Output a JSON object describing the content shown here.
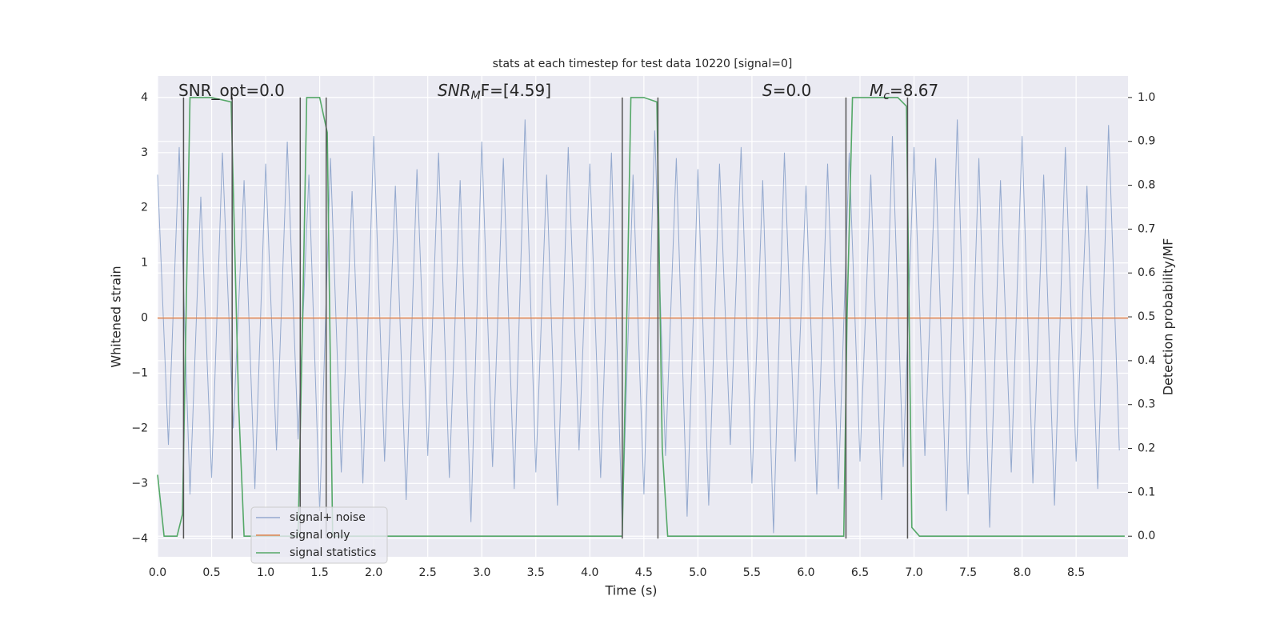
{
  "chart_data": {
    "type": "line",
    "title": "stats at each timestep for test data 10220 [signal=0]",
    "xlabel": "Time (s)",
    "ylabel": "Whitened strain",
    "y2label": "Detection probability/MF",
    "xlim": [
      0,
      8.98
    ],
    "ylim": [
      -4.33,
      4.39
    ],
    "y2lim": [
      -0.047,
      1.049
    ],
    "xticks": [
      {
        "value": 0,
        "label": "0.0"
      },
      0.5,
      {
        "value": 1,
        "label": "1.0"
      },
      1.5,
      {
        "value": 2,
        "label": "2.0"
      },
      2.5,
      {
        "value": 3,
        "label": "3.0"
      },
      3.5,
      {
        "value": 4,
        "label": "4.0"
      },
      4.5,
      {
        "value": 5,
        "label": "5.0"
      },
      5.5,
      {
        "value": 6,
        "label": "6.0"
      },
      6.5,
      {
        "value": 7,
        "label": "7.0"
      },
      7.5,
      {
        "value": 8,
        "label": "8.0"
      },
      8.5
    ],
    "yticks": [
      {
        "value": -4,
        "label": "−4"
      },
      {
        "value": -3,
        "label": "−3"
      },
      {
        "value": -2,
        "label": "−2"
      },
      {
        "value": -1,
        "label": "−1"
      },
      0,
      1,
      2,
      3,
      4
    ],
    "y2ticks": [
      {
        "value": 0,
        "label": "0.0"
      },
      0.1,
      0.2,
      0.3,
      0.4,
      0.5,
      0.6,
      0.7,
      0.8,
      0.9,
      {
        "value": 1,
        "label": "1.0"
      }
    ],
    "grid": true,
    "legend_loc": "lower left",
    "series": [
      {
        "name": "signal+ noise",
        "color": "#4c72b0",
        "x": [
          0,
          0.1,
          0.2,
          0.3,
          0.4,
          0.5,
          0.6,
          0.7,
          0.8,
          0.9,
          1,
          1.1,
          1.2,
          1.3,
          1.4,
          1.5,
          1.6,
          1.7,
          1.8,
          1.9,
          2,
          2.1,
          2.2,
          2.3,
          2.4,
          2.5,
          2.6,
          2.7,
          2.8,
          2.9,
          3,
          3.1,
          3.2,
          3.3,
          3.4,
          3.5,
          3.6,
          3.7,
          3.8,
          3.9,
          4,
          4.1,
          4.2,
          4.3,
          4.4,
          4.5,
          4.6,
          4.7,
          4.8,
          4.9,
          5,
          5.1,
          5.2,
          5.3,
          5.4,
          5.5,
          5.6,
          5.7,
          5.8,
          5.9,
          6,
          6.1,
          6.2,
          6.3,
          6.4,
          6.5,
          6.6,
          6.7,
          6.8,
          6.9,
          7,
          7.1,
          7.2,
          7.3,
          7.4,
          7.5,
          7.6,
          7.7,
          7.8,
          7.9,
          8,
          8.1,
          8.2,
          8.3,
          8.4,
          8.5,
          8.6,
          8.7,
          8.8,
          8.9
        ],
        "values": [
          2.6,
          -2.3,
          3.1,
          -3.2,
          2.2,
          -2.9,
          3.0,
          -2.0,
          2.5,
          -3.1,
          2.8,
          -2.4,
          3.2,
          -2.2,
          2.6,
          -3.5,
          2.9,
          -2.8,
          2.3,
          -3.0,
          3.3,
          -2.6,
          2.4,
          -3.3,
          2.7,
          -2.5,
          3.0,
          -2.9,
          2.5,
          -3.7,
          3.2,
          -2.7,
          2.9,
          -3.1,
          3.6,
          -2.8,
          2.6,
          -3.4,
          3.1,
          -2.4,
          2.8,
          -2.9,
          3.0,
          -3.8,
          2.6,
          -3.2,
          3.4,
          -2.5,
          2.9,
          -3.6,
          2.7,
          -3.4,
          2.8,
          -2.3,
          3.1,
          -3.0,
          2.5,
          -3.9,
          3.0,
          -2.6,
          2.4,
          -3.2,
          2.8,
          -3.1,
          3.0,
          -2.6,
          2.6,
          -3.3,
          3.3,
          -2.7,
          3.1,
          -2.5,
          2.9,
          -3.5,
          3.6,
          -3.2,
          2.9,
          -3.8,
          2.5,
          -2.8,
          3.3,
          -3.0,
          2.6,
          -3.4,
          3.1,
          -2.6,
          2.4,
          -3.1,
          3.5,
          -2.4
        ]
      },
      {
        "name": "signal only",
        "color": "#dd8452",
        "x": [
          0,
          8.98
        ],
        "values": [
          0,
          0
        ]
      },
      {
        "name": "signal statistics",
        "color": "#55a868",
        "axis": "y2",
        "x": [
          0,
          0.06,
          0.18,
          0.23,
          0.3,
          0.5,
          0.68,
          0.75,
          0.8,
          1.3,
          1.35,
          1.38,
          1.5,
          1.57,
          1.62,
          4.3,
          4.35,
          4.38,
          4.5,
          4.62,
          4.67,
          4.72,
          6.35,
          6.38,
          6.43,
          6.85,
          6.93,
          6.98,
          7.05,
          8.95
        ],
        "values": [
          0.14,
          0,
          0,
          0.05,
          1,
          1,
          0.99,
          0.3,
          0,
          0,
          0.6,
          1,
          1,
          0.92,
          0,
          0,
          0.6,
          1,
          1,
          0.99,
          0.2,
          0,
          0,
          0.5,
          1,
          1,
          0.98,
          0.02,
          0,
          0
        ]
      }
    ],
    "vlines": {
      "color": "#555555",
      "x": [
        0.24,
        0.69,
        1.32,
        1.56,
        4.3,
        4.63,
        6.37,
        6.94
      ],
      "ymin": -4,
      "ymax": 4
    },
    "annotations": [
      {
        "base": "SNR_opt=0.0"
      },
      {
        "base": "SNR",
        "sub": "M",
        "tail": "F=[4.59]"
      },
      {
        "base": "S",
        "tail": "=0.0"
      },
      {
        "base": "M",
        "sub": "c",
        "tail": "=8.67"
      }
    ]
  }
}
